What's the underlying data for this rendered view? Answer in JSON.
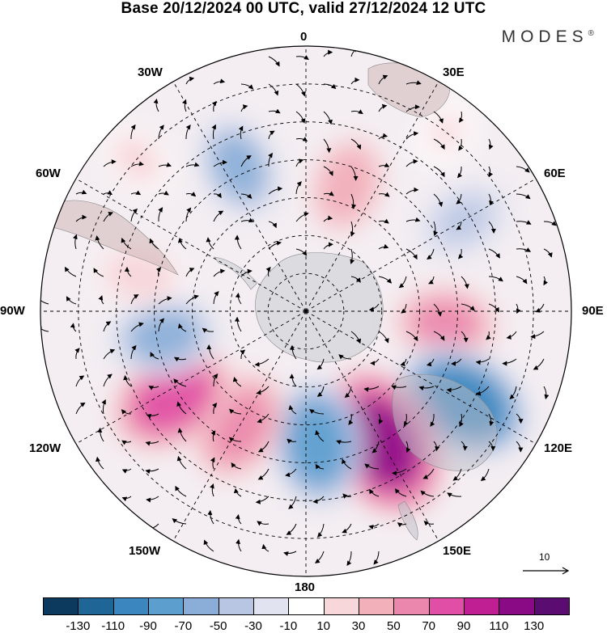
{
  "title": "Base 20/12/2024 00 UTC, valid 27/12/2024 12 UTC",
  "brand": "MODES",
  "brand_mark": "®",
  "meridian_labels": {
    "m0": "0",
    "m30e": "30E",
    "m60e": "60E",
    "m90e": "90E",
    "m120e": "120E",
    "m150e": "150E",
    "m180": "180",
    "m150w": "150W",
    "m120w": "120W",
    "m90w": "90W",
    "m60w": "60W",
    "m30w": "30W"
  },
  "reference_vector": {
    "label": "10"
  },
  "legend": {
    "colors": [
      "#0b3a5e",
      "#1f6596",
      "#3c86bf",
      "#5c9fcf",
      "#8aaed8",
      "#b9c6e3",
      "#e2e3f0",
      "#ffffff",
      "#f7d7da",
      "#f2b0bb",
      "#eb86ad",
      "#e04ea6",
      "#c01f94",
      "#8a0a86",
      "#5a0c70"
    ],
    "tick_labels": [
      "-130",
      "-110",
      "-90",
      "-70",
      "-50",
      "-30",
      "-10",
      "10",
      "30",
      "50",
      "70",
      "90",
      "110",
      "130"
    ]
  },
  "anomalies": [
    {
      "lon": -78,
      "lat": -45,
      "value": 25
    },
    {
      "lon": -100,
      "lat": -52,
      "value": -60
    },
    {
      "lon": -123,
      "lat": -48,
      "value": 85
    },
    {
      "lon": -150,
      "lat": -55,
      "value": 60
    },
    {
      "lon": 175,
      "lat": -55,
      "value": -80
    },
    {
      "lon": 150,
      "lat": -50,
      "value": 110
    },
    {
      "lon": 120,
      "lat": -42,
      "value": -100
    },
    {
      "lon": 95,
      "lat": -53,
      "value": 55
    },
    {
      "lon": 60,
      "lat": -42,
      "value": -40
    },
    {
      "lon": 18,
      "lat": -55,
      "value": 45
    },
    {
      "lon": -25,
      "lat": -48,
      "value": -55
    },
    {
      "lon": -48,
      "lat": -30,
      "value": 15
    },
    {
      "lon": 38,
      "lat": -30,
      "value": 10
    }
  ]
}
